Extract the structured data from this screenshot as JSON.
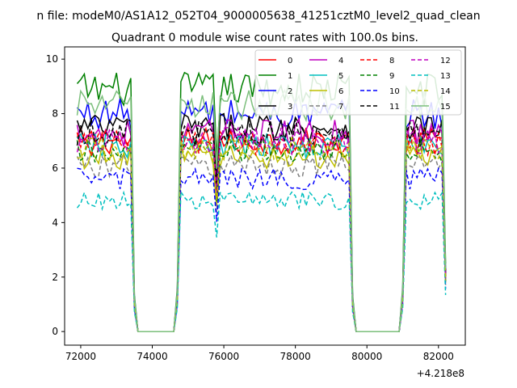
{
  "page": {
    "suptitle": "n file: modeM0/AS1A12_052T04_9000005638_41251cztM0_level2_quad_clean",
    "title": "Quadrant 0 module wise count rates with 100.0s bins."
  },
  "chart_data": {
    "type": "line",
    "title": "Quadrant 0 module wise count rates with 100.0s bins.",
    "xlabel": "",
    "ylabel": "",
    "x_offset_label": "+4.218e8",
    "xlim": [
      71550,
      82750
    ],
    "ylim": [
      -0.5,
      10.45
    ],
    "xticks": [
      72000,
      74000,
      76000,
      78000,
      80000,
      82000
    ],
    "yticks": [
      0,
      2,
      4,
      6,
      8,
      10
    ],
    "legend_position": "top-right",
    "grid": false,
    "segments": [
      {
        "start": 71900,
        "end": 73400
      },
      {
        "start": 74800,
        "end": 79500
      },
      {
        "start": 81100,
        "end": 82100
      }
    ],
    "gap_ranges": [
      [
        73600,
        74700
      ],
      [
        79700,
        81000
      ]
    ],
    "series": [
      {
        "name": "0",
        "color": "#ff0000",
        "dash": "solid",
        "level": 7.0
      },
      {
        "name": "1",
        "color": "#008000",
        "dash": "solid",
        "level": 8.9
      },
      {
        "name": "2",
        "color": "#0000ff",
        "dash": "solid",
        "level": 8.0
      },
      {
        "name": "3",
        "color": "#000000",
        "dash": "solid",
        "level": 7.5
      },
      {
        "name": "4",
        "color": "#bf00bf",
        "dash": "solid",
        "level": 7.3
      },
      {
        "name": "5",
        "color": "#00bfbf",
        "dash": "solid",
        "level": 6.8
      },
      {
        "name": "6",
        "color": "#bfbf00",
        "dash": "solid",
        "level": 6.4
      },
      {
        "name": "7",
        "color": "#808080",
        "dash": "dashed",
        "level": 6.1
      },
      {
        "name": "8",
        "color": "#ff0000",
        "dash": "dashed",
        "level": 6.9
      },
      {
        "name": "9",
        "color": "#008000",
        "dash": "dashed",
        "level": 6.6
      },
      {
        "name": "10",
        "color": "#0000ff",
        "dash": "dashed",
        "level": 5.6
      },
      {
        "name": "11",
        "color": "#000000",
        "dash": "dashed",
        "level": 7.3
      },
      {
        "name": "12",
        "color": "#bf00bf",
        "dash": "dashed",
        "level": 7.0
      },
      {
        "name": "13",
        "color": "#00bfbf",
        "dash": "dashed",
        "level": 4.8
      },
      {
        "name": "14",
        "color": "#bfbf00",
        "dash": "dashed",
        "level": 6.7
      },
      {
        "name": "15",
        "color": "#7cbf7c",
        "dash": "solid",
        "level": 8.3
      }
    ]
  }
}
